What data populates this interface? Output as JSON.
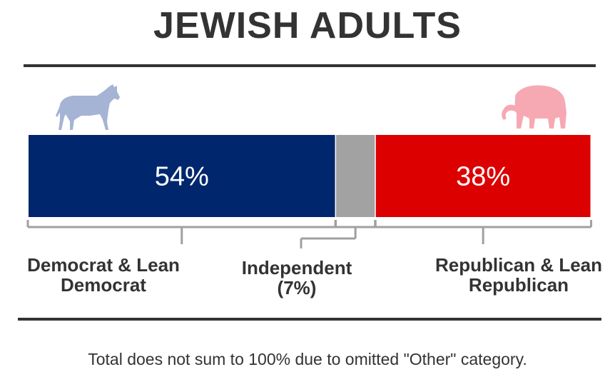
{
  "title": "JEWISH ADULTS",
  "note": "Total does not sum to 100% due to omitted \"Other\" category.",
  "icons": {
    "left": "donkey-icon",
    "right": "elephant-icon"
  },
  "colors": {
    "democrat": "#00276d",
    "independent": "#a2a2a2",
    "republican": "#dd0000",
    "donkey": "#a5b3d5",
    "elephant": "#f6a9b3",
    "text": "#333333"
  },
  "chart_data": {
    "type": "bar",
    "orientation": "horizontal-stacked",
    "categories": [
      "Democrat & Lean Democrat",
      "Independent",
      "Republican & Lean Republican"
    ],
    "values": [
      54,
      7,
      38
    ],
    "data_labels": [
      "54%",
      "",
      "38%"
    ],
    "labels": [
      {
        "line1": "Democrat & Lean",
        "line2": "Democrat"
      },
      {
        "line1": "Independent",
        "line2": "(7%)"
      },
      {
        "line1": "Republican & Lean",
        "line2": "Republican"
      }
    ]
  }
}
